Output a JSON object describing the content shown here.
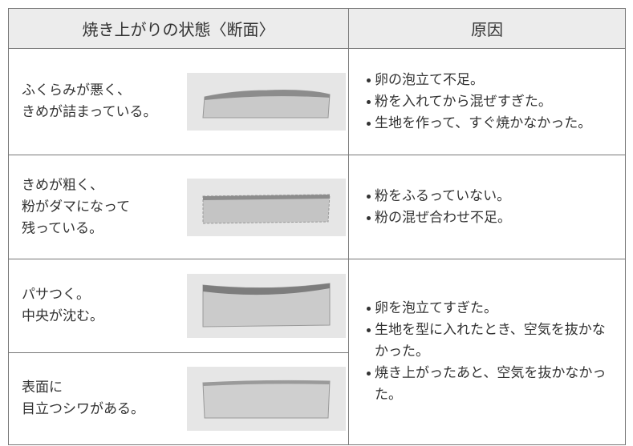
{
  "table": {
    "header": [
      "焼き上がりの状態〈断面〉",
      "原因"
    ],
    "rows": [
      {
        "state": [
          "ふくらみが悪く、",
          "きめが詰まっている。"
        ],
        "causes": [
          "卵の泡立て不足。",
          "粉を入れてから混ぜすぎた。",
          "生地を作って、すぐ焼かなかった。"
        ]
      },
      {
        "state": [
          "きめが粗く、",
          "粉がダマになって",
          "残っている。"
        ],
        "causes": [
          "粉をふるっていない。",
          "粉の混ぜ合わせ不足。"
        ]
      },
      {
        "state": [
          "パサつく。",
          "中央が沈む。"
        ],
        "causes": [
          "卵を泡立てすぎた。",
          "生地を型に入れたとき、空気を抜かなかった。",
          "焼き上がったあと、空気を抜かなかった。"
        ]
      },
      {
        "state": [
          "表面に",
          "目立つシワがある。"
        ]
      }
    ]
  }
}
